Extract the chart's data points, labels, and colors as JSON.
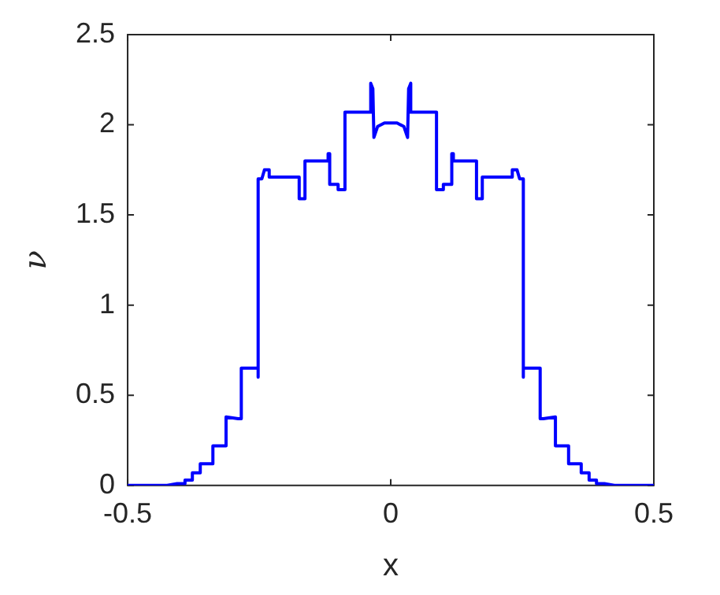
{
  "chart_data": {
    "type": "line",
    "xlabel": "x",
    "ylabel": "ν",
    "xlim": [
      -0.5,
      0.5
    ],
    "xticks": [
      -0.5,
      0,
      0.5
    ],
    "ylim": [
      0,
      2.5
    ],
    "yticks": [
      0,
      0.5,
      1,
      1.5,
      2,
      2.5
    ],
    "grid": false,
    "legend": false,
    "marker": "none",
    "line_style": "solid",
    "series": [
      {
        "color": "#0000ff",
        "x": [
          -0.5,
          -0.425,
          -0.406,
          -0.406,
          -0.391,
          -0.391,
          -0.377,
          -0.377,
          -0.362,
          -0.362,
          -0.338,
          -0.338,
          -0.313,
          -0.313,
          -0.29,
          -0.284,
          -0.284,
          -0.252,
          -0.252,
          -0.252,
          -0.245,
          -0.24,
          -0.231,
          -0.231,
          -0.174,
          -0.174,
          -0.163,
          -0.163,
          -0.119,
          -0.119,
          -0.116,
          -0.116,
          -0.1,
          -0.1,
          -0.087,
          -0.087,
          -0.038,
          -0.038,
          -0.034,
          -0.032,
          -0.025,
          -0.012,
          0,
          0.012,
          0.025,
          0.032,
          0.034,
          0.038,
          0.038,
          0.087,
          0.087,
          0.1,
          0.1,
          0.116,
          0.116,
          0.119,
          0.119,
          0.163,
          0.163,
          0.174,
          0.174,
          0.231,
          0.231,
          0.24,
          0.245,
          0.252,
          0.252,
          0.252,
          0.284,
          0.284,
          0.29,
          0.313,
          0.313,
          0.338,
          0.338,
          0.362,
          0.362,
          0.377,
          0.377,
          0.391,
          0.391,
          0.406,
          0.406,
          0.425,
          0.5
        ],
        "values": [
          0,
          0,
          0.01,
          0.01,
          0.01,
          0.03,
          0.03,
          0.07,
          0.07,
          0.12,
          0.12,
          0.22,
          0.22,
          0.38,
          0.37,
          0.37,
          0.65,
          0.65,
          0.6,
          1.7,
          1.7,
          1.75,
          1.75,
          1.71,
          1.71,
          1.59,
          1.59,
          1.8,
          1.8,
          1.84,
          1.84,
          1.67,
          1.67,
          1.64,
          1.64,
          2.07,
          2.07,
          2.23,
          2.2,
          1.93,
          1.99,
          2.01,
          2.01,
          2.01,
          1.99,
          1.93,
          2.2,
          2.23,
          2.07,
          2.07,
          1.64,
          1.64,
          1.67,
          1.67,
          1.84,
          1.84,
          1.8,
          1.8,
          1.59,
          1.59,
          1.71,
          1.71,
          1.75,
          1.75,
          1.7,
          1.7,
          0.6,
          0.65,
          0.65,
          0.37,
          0.37,
          0.38,
          0.22,
          0.22,
          0.12,
          0.12,
          0.07,
          0.07,
          0.03,
          0.03,
          0.01,
          0.01,
          0.01,
          0,
          0
        ]
      }
    ]
  }
}
